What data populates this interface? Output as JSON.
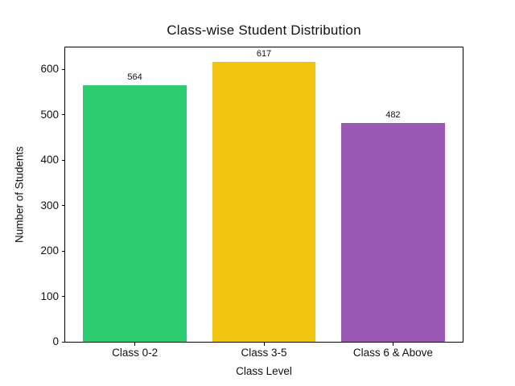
{
  "figure": {
    "background": "#ffffff"
  },
  "chart_data": {
    "type": "bar",
    "title": "Class-wise Student Distribution",
    "xlabel": "Class Level",
    "ylabel": "Number of Students",
    "categories": [
      "Class 0-2",
      "Class 3-5",
      "Class 6 & Above"
    ],
    "values": [
      564,
      617,
      482
    ],
    "value_labels": [
      "564",
      "617",
      "482"
    ],
    "bar_colors": [
      "#2ecc71",
      "#f1c40f",
      "#9b59b6"
    ],
    "yticks": [
      0,
      100,
      200,
      300,
      400,
      500,
      600
    ],
    "ytick_labels": [
      "0",
      "100",
      "200",
      "300",
      "400",
      "500",
      "600"
    ],
    "ylim": [
      0,
      648
    ],
    "xlim": [
      -0.54,
      2.54
    ],
    "bar_width_units": 0.8,
    "grid": false,
    "legend": false,
    "text_color": "#111111",
    "spine_color": "#000000"
  }
}
